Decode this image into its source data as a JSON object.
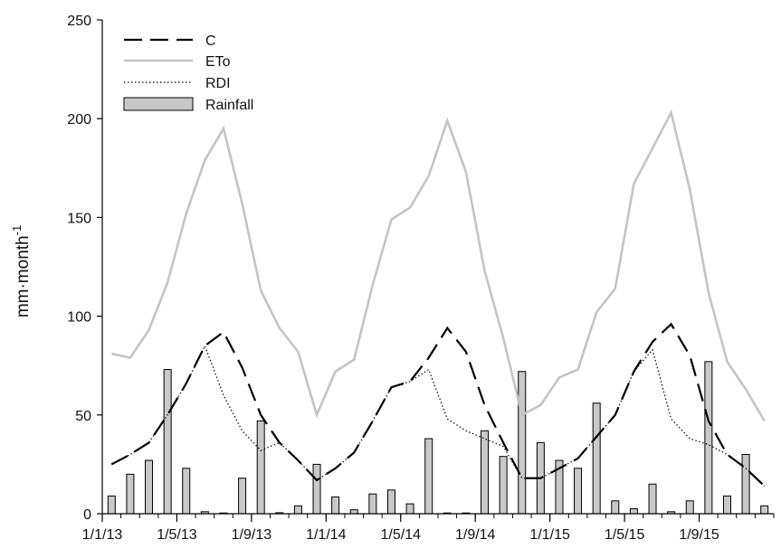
{
  "chart_data": {
    "type": "bar+line",
    "title": "",
    "xlabel": "",
    "ylabel": "mm·month",
    "ylabel_superscript": "-1",
    "ylim": [
      0,
      250
    ],
    "yticks": [
      0,
      50,
      100,
      150,
      200,
      250
    ],
    "x_tick_labels": [
      "1/1/13",
      "1/5/13",
      "1/9/13",
      "1/1/14",
      "1/5/14",
      "1/9/14",
      "1/1/15",
      "1/5/15",
      "1/9/15"
    ],
    "x_tick_positions": [
      0,
      4,
      8,
      12,
      16,
      20,
      24,
      28,
      32
    ],
    "months": [
      "1/13",
      "2/13",
      "3/13",
      "4/13",
      "5/13",
      "6/13",
      "7/13",
      "8/13",
      "9/13",
      "10/13",
      "11/13",
      "12/13",
      "1/14",
      "2/14",
      "3/14",
      "4/14",
      "5/14",
      "6/14",
      "7/14",
      "8/14",
      "9/14",
      "10/14",
      "11/14",
      "12/14",
      "1/15",
      "2/15",
      "3/15",
      "4/15",
      "5/15",
      "6/15",
      "7/15",
      "8/15",
      "9/15",
      "10/15",
      "11/15",
      "12/15"
    ],
    "legend": {
      "position": "top-left",
      "entries": [
        {
          "label": "C",
          "style": "dashed"
        },
        {
          "label": "ETo",
          "style": "solid-gray"
        },
        {
          "label": "RDI",
          "style": "dotted"
        },
        {
          "label": "Rainfall",
          "style": "bar"
        }
      ]
    },
    "series": [
      {
        "name": "Rainfall",
        "kind": "bar",
        "values": [
          9,
          20,
          27,
          73,
          23,
          1,
          0,
          18,
          47,
          0.5,
          4,
          25,
          8.5,
          2,
          10,
          12,
          5,
          38,
          0,
          0,
          42,
          29,
          72,
          36,
          27,
          23,
          56,
          6.5,
          2.5,
          15,
          1,
          6.5,
          77,
          9,
          30,
          4
        ]
      },
      {
        "name": "ETo",
        "kind": "line",
        "values": [
          81,
          79,
          93,
          117,
          152,
          179,
          195,
          157,
          113,
          94,
          82,
          50,
          72,
          78,
          116,
          149,
          155,
          171,
          199,
          173,
          123,
          89,
          50,
          55,
          69,
          73,
          102,
          114,
          167,
          185,
          203,
          164,
          112,
          77,
          63,
          47
        ]
      },
      {
        "name": "C",
        "kind": "line",
        "values": [
          25,
          30,
          36,
          50,
          66,
          85,
          92,
          74,
          50,
          36,
          27,
          17,
          23,
          31,
          47,
          64,
          67,
          79,
          94,
          82,
          55,
          36,
          18,
          18,
          23,
          28,
          39,
          50,
          72,
          87,
          96,
          80,
          47,
          30,
          23,
          14
        ]
      },
      {
        "name": "RDI",
        "kind": "line",
        "values": [
          25,
          30,
          36,
          50,
          66,
          85,
          60,
          42,
          32,
          36,
          27,
          17,
          23,
          31,
          47,
          64,
          67,
          73,
          48,
          42,
          38,
          34,
          18,
          18,
          23,
          28,
          39,
          50,
          72,
          83,
          48,
          38,
          35,
          30,
          23,
          14
        ]
      }
    ],
    "colors": {
      "eto": "#c4c4c4",
      "bar_fill": "#c8c8c8",
      "bar_stroke": "#000000",
      "c_line": "#000000",
      "rdi_line": "#000000"
    },
    "grid": false
  }
}
